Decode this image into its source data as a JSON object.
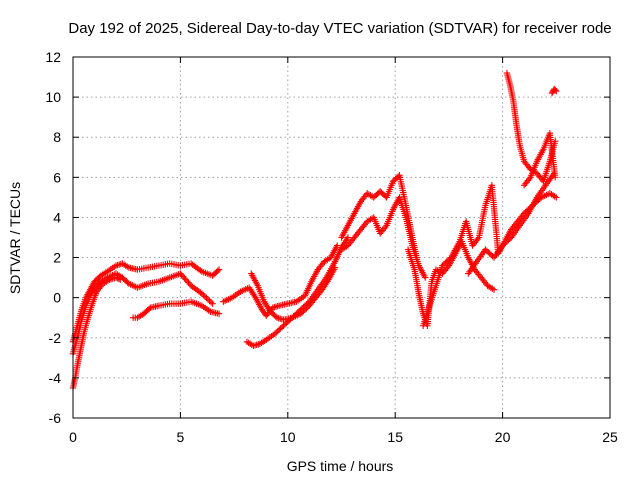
{
  "chart_data": {
    "type": "scatter",
    "title": "Day 192 of 2025, Sidereal Day-to-day VTEC variation (SDTVAR) for receiver rode",
    "xlabel": "GPS time / hours",
    "ylabel": "SDTVAR / TECUs",
    "xlim": [
      0,
      25
    ],
    "ylim": [
      -6,
      12
    ],
    "xticks": [
      0,
      5,
      10,
      15,
      20,
      25
    ],
    "yticks": [
      -6,
      -4,
      -2,
      0,
      2,
      4,
      6,
      8,
      10,
      12
    ],
    "xtick_labels": [
      "0",
      "5",
      "10",
      "15",
      "20",
      "25"
    ],
    "ytick_labels": [
      "-6",
      "-4",
      "-2",
      "0",
      "2",
      "4",
      "6",
      "8",
      "10",
      "12"
    ],
    "grid": true,
    "marker": "+",
    "color": "#ff0000",
    "series": [
      {
        "x": [
          0.0,
          0.1,
          0.25,
          0.4,
          0.6,
          0.8,
          1.0,
          1.3,
          1.6,
          2.0,
          2.3,
          2.6,
          3.0,
          3.5,
          4.0,
          4.5,
          5.0,
          5.5,
          6.0,
          6.5,
          6.8
        ],
        "y": [
          -2.2,
          -1.8,
          -1.2,
          -0.6,
          0.0,
          0.4,
          0.8,
          1.1,
          1.3,
          1.6,
          1.7,
          1.5,
          1.4,
          1.5,
          1.6,
          1.7,
          1.6,
          1.7,
          1.3,
          1.1,
          1.4
        ]
      },
      {
        "x": [
          0.0,
          0.1,
          0.25,
          0.4,
          0.6,
          0.8,
          1.0,
          1.3,
          1.6,
          2.0,
          2.3,
          2.6,
          3.0,
          3.5,
          4.0,
          4.5,
          5.0,
          5.5,
          6.0,
          6.5
        ],
        "y": [
          -2.8,
          -2.4,
          -1.8,
          -1.1,
          -0.4,
          0.1,
          0.5,
          0.8,
          1.0,
          1.2,
          1.0,
          0.7,
          0.5,
          0.7,
          0.8,
          1.0,
          1.2,
          0.6,
          0.2,
          -0.3
        ]
      },
      {
        "x": [
          0.0,
          0.1,
          0.2,
          0.35,
          0.5,
          0.7,
          0.9,
          1.1,
          1.4,
          1.7,
          2.0,
          2.2
        ],
        "y": [
          -4.5,
          -4.0,
          -3.4,
          -2.6,
          -1.8,
          -1.0,
          -0.3,
          0.3,
          0.7,
          0.9,
          1.0,
          0.9
        ]
      },
      {
        "x": [
          2.8,
          3.0,
          3.3,
          3.6,
          4.0,
          4.5,
          5.0,
          5.5,
          6.0,
          6.4,
          6.8
        ],
        "y": [
          -1.0,
          -1.0,
          -0.8,
          -0.5,
          -0.4,
          -0.3,
          -0.3,
          -0.2,
          -0.4,
          -0.7,
          -0.8
        ]
      },
      {
        "x": [
          7.0,
          7.4,
          7.8,
          8.2,
          8.5,
          8.8,
          9.0,
          9.3,
          9.6,
          10.0,
          10.4,
          10.8,
          11.1,
          11.4,
          11.7,
          12.0,
          12.3
        ],
        "y": [
          -0.2,
          0.0,
          0.3,
          0.5,
          0.0,
          -0.6,
          -0.9,
          -0.5,
          -0.4,
          -0.3,
          -0.2,
          0.1,
          0.8,
          1.4,
          1.8,
          2.0,
          2.6
        ]
      },
      {
        "x": [
          8.3,
          8.6,
          8.9,
          9.2,
          9.5,
          9.8,
          10.2,
          10.6,
          11.0,
          11.3,
          11.6,
          11.9,
          12.2
        ],
        "y": [
          1.2,
          0.6,
          -0.2,
          -0.7,
          -1.0,
          -1.1,
          -1.0,
          -0.8,
          -0.4,
          0.0,
          0.4,
          0.9,
          1.5
        ]
      },
      {
        "x": [
          8.1,
          8.4,
          8.7,
          9.0,
          9.4,
          9.8,
          10.2,
          10.6,
          11.0,
          11.4,
          11.8,
          12.2,
          12.5,
          12.8
        ],
        "y": [
          -2.2,
          -2.4,
          -2.3,
          -2.1,
          -1.8,
          -1.4,
          -1.0,
          -0.6,
          -0.2,
          0.4,
          1.0,
          1.8,
          2.5,
          3.0
        ]
      },
      {
        "x": [
          12.5,
          12.8,
          13.1,
          13.4,
          13.7,
          14.0,
          14.3,
          14.6,
          14.9,
          15.2,
          15.5,
          15.8,
          16.0
        ],
        "y": [
          3.0,
          3.6,
          4.2,
          4.8,
          5.2,
          5.0,
          5.3,
          5.0,
          5.8,
          6.1,
          4.6,
          3.0,
          2.0
        ]
      },
      {
        "x": [
          12.5,
          12.8,
          13.1,
          13.4,
          13.7,
          14.0,
          14.3,
          14.6,
          14.9,
          15.2,
          15.5,
          15.8,
          16.1,
          16.4
        ],
        "y": [
          2.4,
          2.6,
          3.0,
          3.4,
          3.8,
          4.0,
          3.2,
          3.6,
          4.4,
          5.0,
          4.0,
          2.6,
          1.6,
          1.0
        ]
      },
      {
        "x": [
          15.6,
          15.9,
          16.1,
          16.3,
          16.5,
          16.7,
          16.9,
          17.2,
          17.5,
          17.8,
          18.1,
          18.4,
          18.7,
          19.0,
          19.3,
          19.6
        ],
        "y": [
          2.4,
          1.4,
          0.2,
          -0.8,
          -1.4,
          0.8,
          1.4,
          1.2,
          1.6,
          2.2,
          2.8,
          2.0,
          1.4,
          1.0,
          0.6,
          0.4
        ]
      },
      {
        "x": [
          16.3,
          16.6,
          16.9,
          17.2,
          17.6,
          18.0,
          18.3,
          18.6,
          18.9,
          19.2,
          19.5,
          19.8,
          20.1,
          20.4,
          20.7,
          21.0,
          21.4,
          21.8,
          22.2,
          22.5
        ],
        "y": [
          -1.4,
          -0.4,
          0.6,
          1.6,
          2.0,
          2.8,
          3.8,
          2.6,
          3.0,
          4.6,
          5.6,
          2.2,
          2.8,
          3.4,
          3.8,
          4.2,
          4.6,
          5.0,
          5.2,
          5.0
        ]
      },
      {
        "x": [
          18.4,
          18.8,
          19.2,
          19.6,
          20.0,
          20.4,
          20.8,
          21.2,
          21.6,
          22.0,
          22.4
        ],
        "y": [
          1.2,
          1.8,
          2.4,
          2.0,
          2.6,
          3.0,
          3.6,
          4.2,
          5.0,
          5.6,
          6.2
        ]
      },
      {
        "x": [
          20.2,
          20.35,
          20.5,
          20.65,
          20.8,
          21.0,
          21.3,
          21.6,
          21.9,
          22.2,
          22.45
        ],
        "y": [
          11.2,
          10.6,
          9.8,
          8.6,
          7.6,
          6.8,
          6.4,
          6.2,
          5.8,
          6.8,
          7.8
        ]
      },
      {
        "x": [
          21.0,
          21.3,
          21.6,
          21.9,
          22.2,
          22.45
        ],
        "y": [
          5.6,
          6.0,
          6.8,
          7.4,
          8.2,
          6.0
        ]
      },
      {
        "x": [
          22.3,
          22.4,
          22.5
        ],
        "y": [
          10.2,
          10.4,
          10.3
        ]
      }
    ]
  }
}
